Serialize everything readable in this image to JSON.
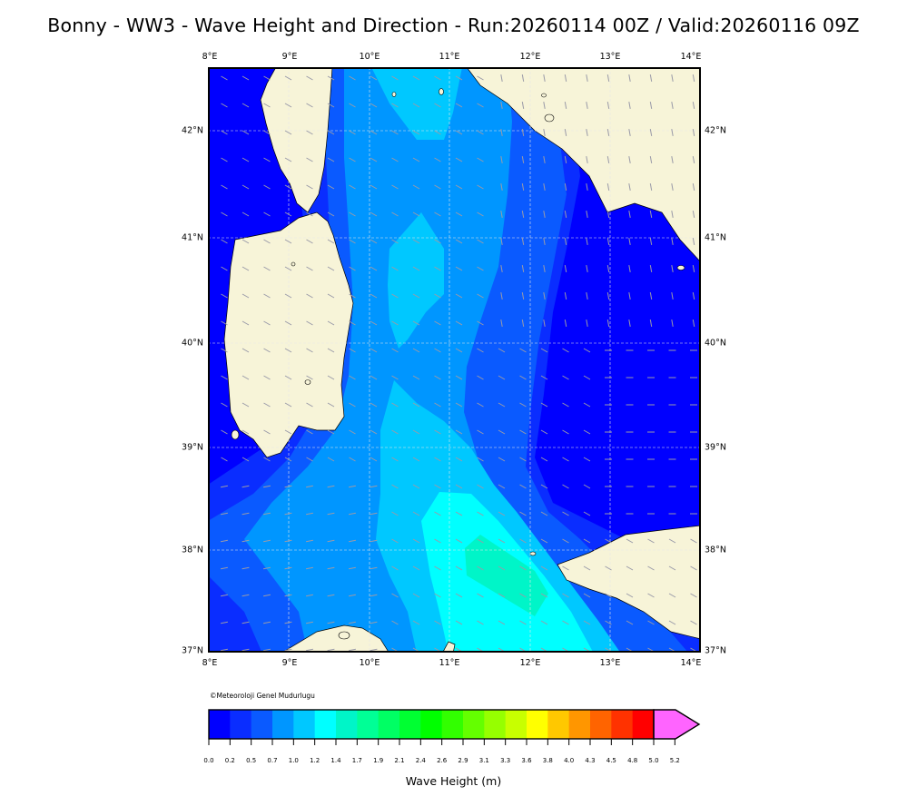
{
  "header": {
    "title": "Bonny - WW3 - Wave Height and Direction - Run:20260114 00Z / Valid:20260116 09Z"
  },
  "map": {
    "lon_labels": [
      "8°E",
      "9°E",
      "10°E",
      "11°E",
      "12°E",
      "13°E",
      "14°E"
    ],
    "lat_labels": [
      "42°N",
      "41°N",
      "40°N",
      "39°N",
      "38°N",
      "37°N"
    ],
    "lon_range": [
      8,
      14.1
    ],
    "lat_range": [
      37,
      42.6
    ],
    "land_color": "#f7f4d8",
    "sea_base_color": "#0000ff",
    "arrow_color": "#9a9aa8",
    "arrow_direction": "mostly northwestward, variable in east"
  },
  "credit": "©Meteoroloji Genel Mudurlugu",
  "colorbar": {
    "label": "Wave Height (m)",
    "ticks": [
      "0.0",
      "0.2",
      "0.5",
      "0.7",
      "1.0",
      "1.2",
      "1.4",
      "1.7",
      "1.9",
      "2.1",
      "2.4",
      "2.6",
      "2.9",
      "3.1",
      "3.3",
      "3.6",
      "3.8",
      "4.0",
      "4.3",
      "4.5",
      "4.8",
      "5.0",
      "5.2"
    ],
    "colors": [
      "#0000ff",
      "#0a2dff",
      "#0a5aff",
      "#0096ff",
      "#00c8ff",
      "#00ffff",
      "#00f5c8",
      "#00ff96",
      "#00ff64",
      "#00ff32",
      "#00ff00",
      "#32ff00",
      "#64ff00",
      "#96ff00",
      "#c8ff00",
      "#ffff00",
      "#ffc800",
      "#ff9600",
      "#ff6400",
      "#ff3200",
      "#ff0000",
      "#ff64ff"
    ]
  }
}
